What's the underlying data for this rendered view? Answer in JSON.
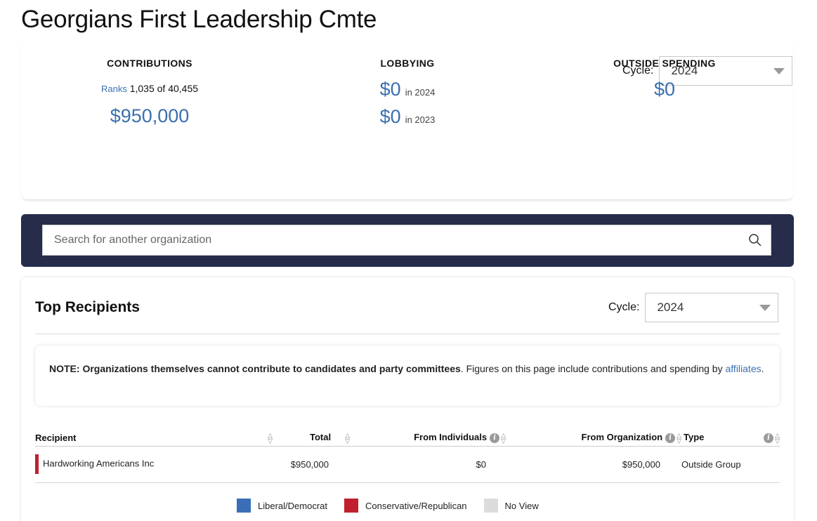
{
  "page": {
    "title": "Georgians First Leadership Cmte"
  },
  "summary": {
    "cycle_label": "Cycle:",
    "cycle_value": "2024",
    "contributions": {
      "heading": "CONTRIBUTIONS",
      "ranks_link": "Ranks",
      "ranks_text": "1,035 of 40,455",
      "amount": "$950,000"
    },
    "lobbying": {
      "heading": "LOBBYING",
      "rows": [
        {
          "amount": "$0",
          "year": "in 2024"
        },
        {
          "amount": "$0",
          "year": "in 2023"
        }
      ]
    },
    "outside": {
      "heading": "OUTSIDE SPENDING",
      "amount": "$0"
    }
  },
  "search": {
    "placeholder": "Search for another organization"
  },
  "recipients": {
    "title": "Top Recipients",
    "cycle_label": "Cycle:",
    "cycle_value": "2024",
    "note_bold": "NOTE: Organizations themselves cannot contribute to candidates and party committees",
    "note_text": ". Figures on this page include contributions and spending by",
    "note_link": "affiliates",
    "note_end": ".",
    "columns": [
      "Recipient",
      "Total",
      "From Individuals",
      "From Organization",
      "Type"
    ],
    "rows": [
      {
        "recipient": "Hardworking Americans Inc",
        "total": "$950,000",
        "individuals": "$0",
        "organization": "$950,000",
        "type": "Outside Group"
      }
    ],
    "legend": [
      {
        "label": "Liberal/Democrat",
        "color": "#3a6fb8"
      },
      {
        "label": "Conservative/Republican",
        "color": "#c0202e"
      },
      {
        "label": "No View",
        "color": "#dcdcdc"
      }
    ]
  },
  "colors": {
    "accent": "#3a6fb0",
    "banner": "#262c4a",
    "republican": "#c0202e"
  }
}
